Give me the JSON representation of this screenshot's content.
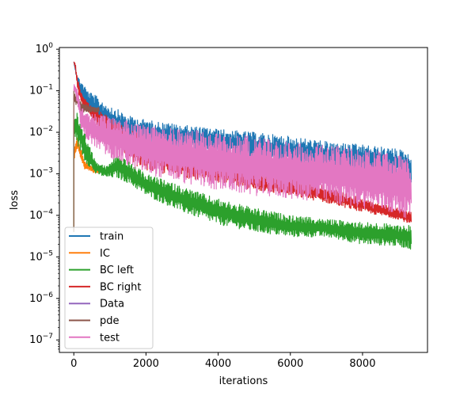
{
  "chart_data": {
    "type": "line",
    "title": "",
    "xlabel": "iterations",
    "ylabel": "loss",
    "xscale": "linear",
    "yscale": "log",
    "xlim": [
      -400,
      9800
    ],
    "ylim": [
      5e-08,
      1.1
    ],
    "xticks": [
      0,
      2000,
      4000,
      6000,
      8000
    ],
    "xtick_labels": [
      "0",
      "2000",
      "4000",
      "6000",
      "8000"
    ],
    "yticks": [
      1e-07,
      1e-06,
      1e-05,
      0.0001,
      0.001,
      0.01,
      0.1,
      1
    ],
    "ytick_labels": [
      {
        "base": "10",
        "exp": "−7"
      },
      {
        "base": "10",
        "exp": "−6"
      },
      {
        "base": "10",
        "exp": "−5"
      },
      {
        "base": "10",
        "exp": "−4"
      },
      {
        "base": "10",
        "exp": "−3"
      },
      {
        "base": "10",
        "exp": "−2"
      },
      {
        "base": "10",
        "exp": "−1"
      },
      {
        "base": "10",
        "exp": "0"
      }
    ],
    "grid": false,
    "legend": "lower-left",
    "series": [
      {
        "name": "train",
        "color": "#1f77b4",
        "x": [
          0,
          100,
          200,
          400,
          800,
          1500,
          2000,
          3000,
          4000,
          5000,
          6000,
          7000,
          8000,
          9000,
          9350
        ],
        "y_upper": [
          0.5,
          0.22,
          0.18,
          0.1,
          0.06,
          0.025,
          0.02,
          0.015,
          0.012,
          0.01,
          0.008,
          0.006,
          0.005,
          0.004,
          0.003
        ],
        "y_lower": [
          0.5,
          0.15,
          0.06,
          0.03,
          0.01,
          0.006,
          0.005,
          0.004,
          0.003,
          0.002,
          0.0015,
          0.0012,
          0.001,
          0.0008,
          0.0006
        ]
      },
      {
        "name": "IC",
        "color": "#ff7f0e",
        "x": [
          0,
          50,
          100,
          200,
          300,
          400,
          500,
          600,
          700
        ],
        "y_upper": [
          0.004,
          0.006,
          0.008,
          0.004,
          0.002,
          0.0018,
          0.0016,
          0.0015,
          0.0014
        ],
        "y_lower": [
          0.002,
          0.003,
          0.004,
          0.002,
          0.0013,
          0.0012,
          0.0011,
          0.001,
          0.001
        ]
      },
      {
        "name": "BC left",
        "color": "#2ca02c",
        "x": [
          0,
          100,
          300,
          600,
          900,
          1200,
          1500,
          2000,
          3000,
          4000,
          5000,
          6000,
          7000,
          8000,
          9000,
          9350
        ],
        "y_upper": [
          0.02,
          0.03,
          0.01,
          0.002,
          0.0015,
          0.003,
          0.002,
          0.001,
          0.0005,
          0.00025,
          0.00015,
          0.0001,
          8e-05,
          7e-05,
          6e-05,
          6e-05
        ],
        "y_lower": [
          0.01,
          0.005,
          0.002,
          0.001,
          0.0008,
          0.0008,
          0.0006,
          0.0003,
          0.00012,
          6e-05,
          4e-05,
          3e-05,
          3e-05,
          2e-05,
          1.8e-05,
          1.5e-05
        ]
      },
      {
        "name": "BC right",
        "color": "#d62728",
        "x": [
          0,
          50,
          100,
          200,
          400,
          800,
          1500,
          2000,
          3000,
          4000,
          5000,
          6000,
          7000,
          8000,
          9000,
          9350
        ],
        "y_upper": [
          0.5,
          0.45,
          0.2,
          0.1,
          0.05,
          0.03,
          0.012,
          0.008,
          0.004,
          0.002,
          0.0012,
          0.0008,
          0.0005,
          0.00025,
          0.00015,
          0.00012
        ],
        "y_lower": [
          0.5,
          0.3,
          0.1,
          0.05,
          0.03,
          0.01,
          0.002,
          0.0012,
          0.0008,
          0.0006,
          0.0004,
          0.0003,
          0.0002,
          0.00012,
          8e-05,
          6e-05
        ]
      },
      {
        "name": "Data",
        "color": "#9467bd",
        "x": [],
        "y_upper": [],
        "y_lower": []
      },
      {
        "name": "pde",
        "color": "#8c564b",
        "x": [
          0,
          100,
          200,
          300,
          400,
          500,
          600,
          700
        ],
        "y_upper": [
          0.1,
          0.08,
          0.06,
          0.05,
          0.045,
          0.04,
          0.04,
          0.04
        ],
        "y_lower": [
          0.05,
          0.04,
          0.03,
          0.03,
          0.03,
          0.03,
          0.03,
          0.03
        ]
      },
      {
        "name": "test",
        "color": "#e377c2",
        "x": [
          0,
          100,
          200,
          400,
          800,
          1500,
          2000,
          3000,
          4000,
          5000,
          6000,
          7000,
          8000,
          9000,
          9350
        ],
        "y_upper": [
          0.15,
          0.12,
          0.05,
          0.03,
          0.025,
          0.02,
          0.015,
          0.012,
          0.01,
          0.008,
          0.006,
          0.005,
          0.004,
          0.003,
          0.002
        ],
        "y_lower": [
          0.1,
          0.05,
          0.01,
          0.006,
          0.003,
          0.0015,
          0.001,
          0.0006,
          0.0004,
          0.0003,
          0.00025,
          0.0002,
          0.00015,
          0.0001,
          8e-05
        ]
      }
    ]
  }
}
